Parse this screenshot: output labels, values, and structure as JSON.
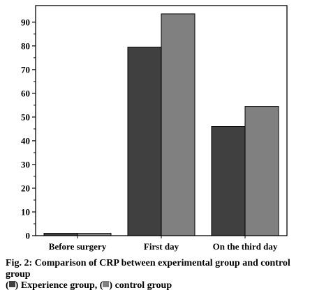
{
  "chart_data": {
    "type": "bar",
    "categories": [
      "Before surgery",
      "First day",
      "On the third day"
    ],
    "series": [
      {
        "values": [
          1,
          79.5,
          46
        ],
        "color": "#404040"
      },
      {
        "values": [
          1,
          93.5,
          54.5
        ],
        "color": "#808080"
      }
    ],
    "title": "",
    "xlabel": "",
    "ylabel": "",
    "ylim": [
      0,
      97
    ],
    "yticks": [
      0,
      10,
      20,
      30,
      40,
      50,
      60,
      70,
      80,
      90
    ],
    "grid": false
  },
  "caption": {
    "line1": "Fig. 2: Comparison of CRP between experimental group and control group",
    "legend_open": "(",
    "legend_item1": ") Experience group, (",
    "legend_item2": ") control group",
    "dark_color": "#404040",
    "light_color": "#808080"
  }
}
